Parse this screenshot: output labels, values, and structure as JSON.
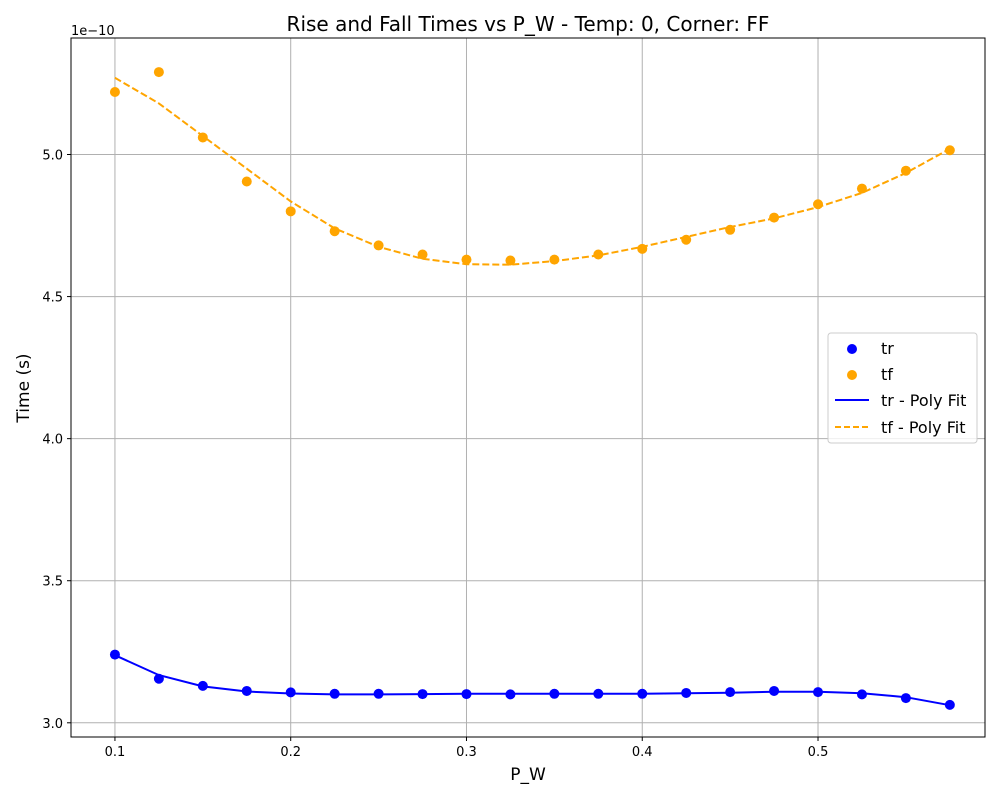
{
  "chart_data": {
    "type": "scatter",
    "title": "Rise and Fall Times vs P_W - Temp: 0, Corner: FF",
    "xlabel": "P_W",
    "ylabel": "Time (s)",
    "offset_label": "1e−10",
    "xlim": [
      0.075,
      0.595
    ],
    "ylim": [
      2.95,
      5.41
    ],
    "x_ticks": [
      0.1,
      0.2,
      0.3,
      0.4,
      0.5
    ],
    "x_tick_labels": [
      "0.1",
      "0.2",
      "0.3",
      "0.4",
      "0.5"
    ],
    "y_ticks": [
      3.0,
      3.5,
      4.0,
      4.5,
      5.0
    ],
    "y_tick_labels": [
      "3.0",
      "3.5",
      "4.0",
      "4.5",
      "5.0"
    ],
    "grid": true,
    "legend_position": "center-right",
    "x": [
      0.1,
      0.125,
      0.15,
      0.175,
      0.2,
      0.225,
      0.25,
      0.275,
      0.3,
      0.325,
      0.35,
      0.375,
      0.4,
      0.425,
      0.45,
      0.475,
      0.5,
      0.525,
      0.55,
      0.575
    ],
    "series": [
      {
        "name": "tr",
        "kind": "scatter",
        "color": "#0000ff",
        "values": [
          3.24,
          3.155,
          3.13,
          3.112,
          3.107,
          3.102,
          3.102,
          3.101,
          3.101,
          3.1,
          3.102,
          3.102,
          3.102,
          3.105,
          3.108,
          3.112,
          3.108,
          3.1,
          3.087,
          3.063
        ]
      },
      {
        "name": "tf",
        "kind": "scatter",
        "color": "#ffa500",
        "values": [
          5.22,
          5.29,
          5.06,
          4.905,
          4.8,
          4.73,
          4.68,
          4.648,
          4.63,
          4.627,
          4.63,
          4.648,
          4.668,
          4.7,
          4.735,
          4.778,
          4.825,
          4.88,
          4.943,
          5.015
        ]
      },
      {
        "name": "tr - Poly Fit",
        "kind": "line",
        "style": "solid",
        "color": "#0000ff",
        "x": [
          0.1,
          0.125,
          0.15,
          0.175,
          0.2,
          0.225,
          0.25,
          0.275,
          0.3,
          0.325,
          0.35,
          0.375,
          0.4,
          0.425,
          0.45,
          0.475,
          0.5,
          0.525,
          0.55,
          0.575
        ],
        "values": [
          3.238,
          3.168,
          3.128,
          3.11,
          3.103,
          3.1,
          3.1,
          3.101,
          3.102,
          3.102,
          3.102,
          3.102,
          3.102,
          3.104,
          3.106,
          3.109,
          3.109,
          3.104,
          3.09,
          3.062
        ]
      },
      {
        "name": "tf - Poly Fit",
        "kind": "line",
        "style": "dashed",
        "color": "#ffa500",
        "x": [
          0.1,
          0.125,
          0.15,
          0.175,
          0.2,
          0.225,
          0.25,
          0.275,
          0.3,
          0.325,
          0.35,
          0.375,
          0.4,
          0.425,
          0.45,
          0.475,
          0.5,
          0.525,
          0.55,
          0.575
        ],
        "values": [
          5.27,
          5.18,
          5.065,
          4.95,
          4.835,
          4.74,
          4.675,
          4.633,
          4.614,
          4.612,
          4.625,
          4.645,
          4.675,
          4.71,
          4.745,
          4.775,
          4.815,
          4.865,
          4.935,
          5.02
        ]
      }
    ]
  }
}
